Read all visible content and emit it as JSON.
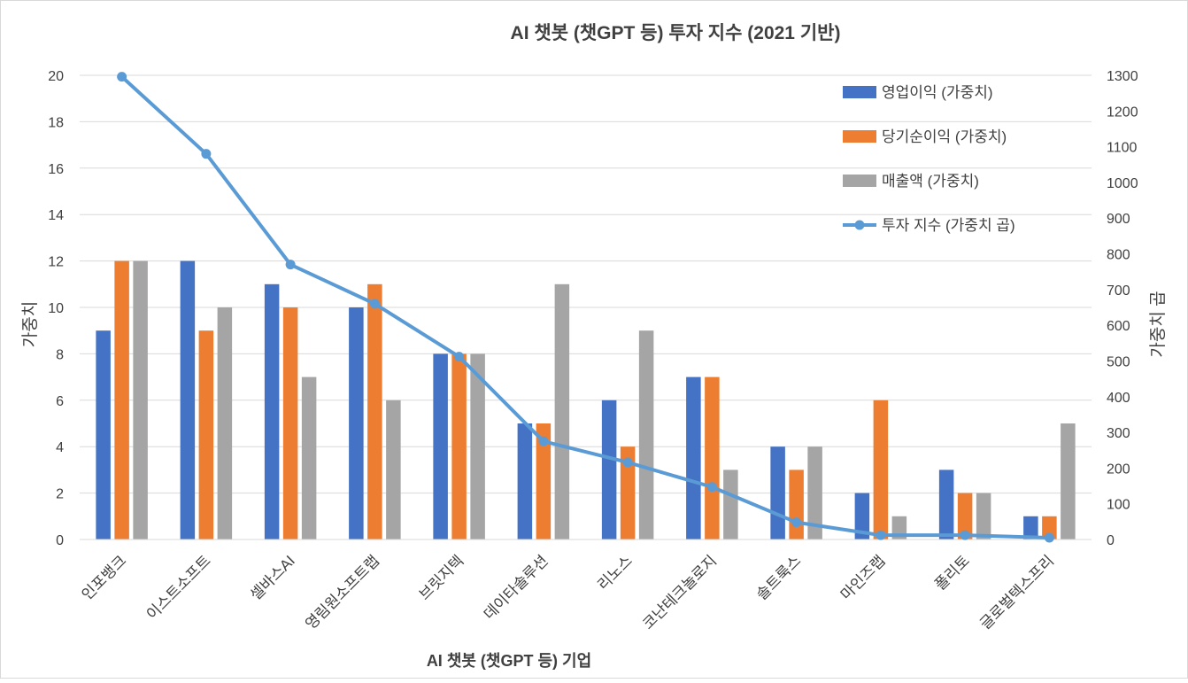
{
  "chart_data": {
    "type": "bar",
    "title": "AI 챗봇 (챗GPT 등) 투자 지수 (2021 기반)",
    "xlabel": "AI 챗봇 (챗GPT 등) 기업",
    "ylabel": "가중치",
    "y2label": "가중치 곱",
    "ylim": [
      0,
      20
    ],
    "y2lim": [
      0,
      1300
    ],
    "yticks": [
      "0",
      "2",
      "4",
      "6",
      "8",
      "10",
      "12",
      "14",
      "16",
      "18",
      "20"
    ],
    "y2ticks": [
      "0",
      "100",
      "200",
      "300",
      "400",
      "500",
      "600",
      "700",
      "800",
      "900",
      "1000",
      "1100",
      "1200",
      "1300"
    ],
    "grid": true,
    "legend_position": "top-right",
    "categories": [
      "인포뱅크",
      "이스트소프트",
      "셀바스AI",
      "영림원소프트랩",
      "브릿지텍",
      "데이타솔루션",
      "리노스",
      "코난테크놀로지",
      "솔트룩스",
      "마인즈랩",
      "폴리토",
      "글로벌텍스프리"
    ],
    "series": [
      {
        "name": "영업이익 (가중치)",
        "type": "bar",
        "axis": "left",
        "color": "#4472c4",
        "values": [
          9,
          12,
          11,
          10,
          8,
          5,
          6,
          7,
          4,
          2,
          3,
          1
        ]
      },
      {
        "name": "당기순이익 (가중치)",
        "type": "bar",
        "axis": "left",
        "color": "#ed7d31",
        "values": [
          12,
          9,
          10,
          11,
          8,
          5,
          4,
          7,
          3,
          6,
          2,
          1
        ]
      },
      {
        "name": "매출액  (가중치)",
        "type": "bar",
        "axis": "left",
        "color": "#a5a5a5",
        "values": [
          12,
          10,
          7,
          6,
          8,
          11,
          9,
          3,
          4,
          1,
          2,
          5
        ]
      },
      {
        "name": "투자 지수 (가중치 곱)",
        "type": "line",
        "axis": "right",
        "color": "#5b9bd5",
        "values": [
          1296,
          1080,
          770,
          660,
          512,
          275,
          216,
          147,
          48,
          12,
          12,
          5
        ]
      }
    ]
  }
}
